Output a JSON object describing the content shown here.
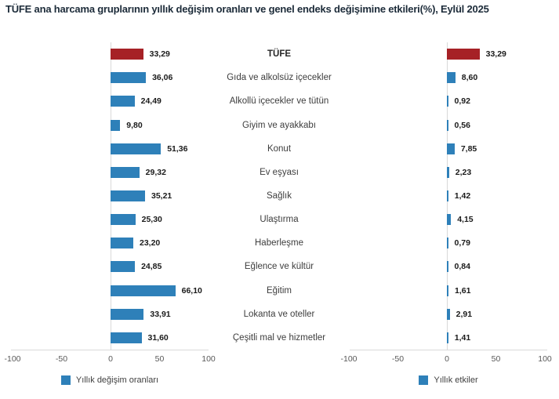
{
  "title": "TÜFE ana harcama gruplarının yıllık değişim oranları ve genel endeks değişimine etkileri(%), Eylül 2025",
  "colors": {
    "bar_blue": "#2e80b9",
    "bar_red": "#a62126",
    "axis_line": "#d9d9d9",
    "tick_text": "#595959",
    "category_text": "#3d3d3d",
    "value_text": "#1a1a1a",
    "title_text": "#1c2b39"
  },
  "chart_data": {
    "type": "bar",
    "orientation": "horizontal",
    "categories": [
      "TÜFE",
      "Gıda ve alkolsüz içecekler",
      "Alkollü içecekler ve tütün",
      "Giyim ve ayakkabı",
      "Konut",
      "Ev eşyası",
      "Sağlık",
      "Ulaştırma",
      "Haberleşme",
      "Eğlence ve kültür",
      "Eğitim",
      "Lokanta ve oteller",
      "Çeşitli mal ve hizmetler"
    ],
    "series": [
      {
        "name": "Yıllık değişim oranları",
        "values": [
          33.29,
          36.06,
          24.49,
          9.8,
          51.36,
          29.32,
          35.21,
          25.3,
          23.2,
          24.85,
          66.1,
          33.91,
          31.6
        ]
      },
      {
        "name": "Yıllık etkiler",
        "values": [
          33.29,
          8.6,
          0.92,
          0.56,
          7.85,
          2.23,
          1.42,
          4.15,
          0.79,
          0.84,
          1.61,
          2.91,
          1.41
        ]
      }
    ],
    "value_labels": [
      [
        "33,29",
        "36,06",
        "24,49",
        "9,80",
        "51,36",
        "29,32",
        "35,21",
        "25,30",
        "23,20",
        "24,85",
        "66,10",
        "33,91",
        "31,60"
      ],
      [
        "33,29",
        "8,60",
        "0,92",
        "0,56",
        "7,85",
        "2,23",
        "1,42",
        "4,15",
        "0,79",
        "0,84",
        "1,61",
        "2,91",
        "1,41"
      ]
    ],
    "highlight_index": 0,
    "xlim": [
      -100,
      100
    ],
    "ticks": [
      -100,
      -50,
      0,
      50,
      100
    ],
    "grid": false,
    "legend_position": "bottom",
    "value_label_format": "comma-decimal"
  }
}
